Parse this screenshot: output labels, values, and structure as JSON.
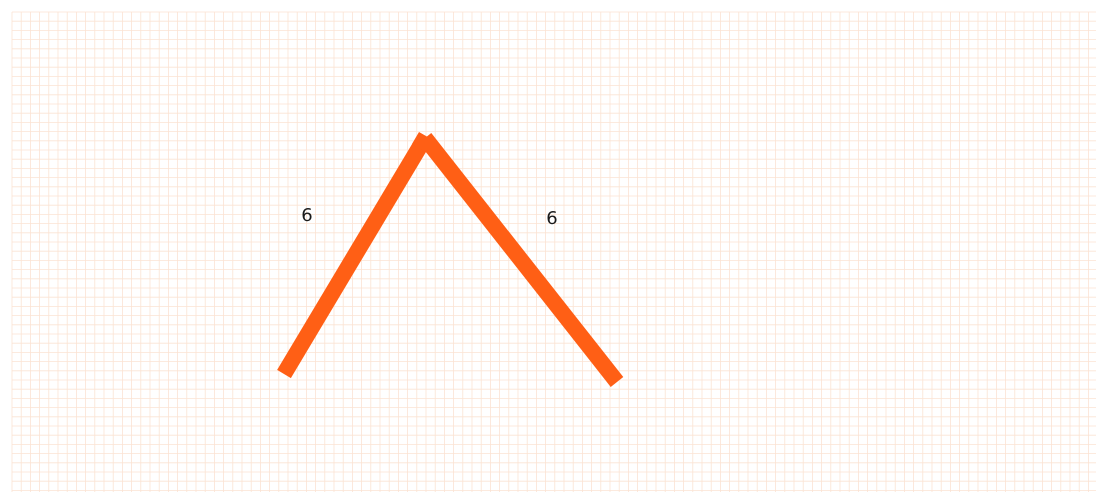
{
  "canvas": {
    "grid_color": "#fbe3d3",
    "background": "#ffffff",
    "stroke_color": "#ff5f15"
  },
  "shape": {
    "segments": [
      {
        "label": "6"
      },
      {
        "label": "6"
      }
    ]
  }
}
